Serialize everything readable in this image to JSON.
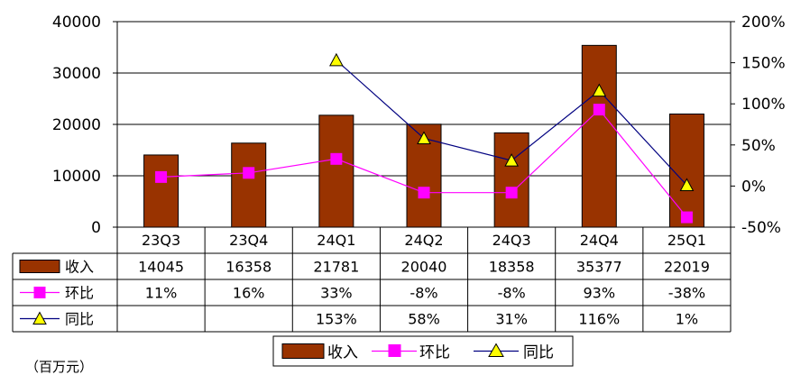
{
  "chart_data": {
    "type": "bar",
    "categories": [
      "23Q3",
      "23Q4",
      "24Q1",
      "24Q2",
      "24Q3",
      "24Q4",
      "25Q1"
    ],
    "series": [
      {
        "name": "收入",
        "type": "bar",
        "axis": "left",
        "values": [
          14045,
          16358,
          21781,
          20040,
          18358,
          35377,
          22019
        ],
        "color": "#993300"
      },
      {
        "name": "环比",
        "type": "line",
        "axis": "right",
        "marker": "square",
        "values": [
          11,
          16,
          33,
          -8,
          -8,
          93,
          -38
        ],
        "color": "#ff00ff"
      },
      {
        "name": "同比",
        "type": "line",
        "axis": "right",
        "marker": "triangle",
        "values": [
          null,
          null,
          153,
          58,
          31,
          116,
          1
        ],
        "color": "#000080",
        "marker_color": "#ffff00"
      }
    ],
    "table": {
      "rows": [
        {
          "label": "收入",
          "cells": [
            "14045",
            "16358",
            "21781",
            "20040",
            "18358",
            "35377",
            "22019"
          ]
        },
        {
          "label": "环比",
          "cells": [
            "11%",
            "16%",
            "33%",
            "-8%",
            "-8%",
            "93%",
            "-38%"
          ]
        },
        {
          "label": "同比",
          "cells": [
            "",
            "",
            "153%",
            "58%",
            "31%",
            "116%",
            "1%"
          ]
        }
      ]
    },
    "y_left": {
      "ylim": [
        0,
        40000
      ],
      "ticks": [
        "0",
        "10000",
        "20000",
        "30000",
        "40000"
      ]
    },
    "y_right": {
      "ylim": [
        -50,
        200
      ],
      "ticks": [
        "-50%",
        "0%",
        "50%",
        "100%",
        "150%",
        "200%"
      ]
    },
    "grid": true,
    "legend_position": "bottom",
    "unit_label": "（百万元）"
  }
}
